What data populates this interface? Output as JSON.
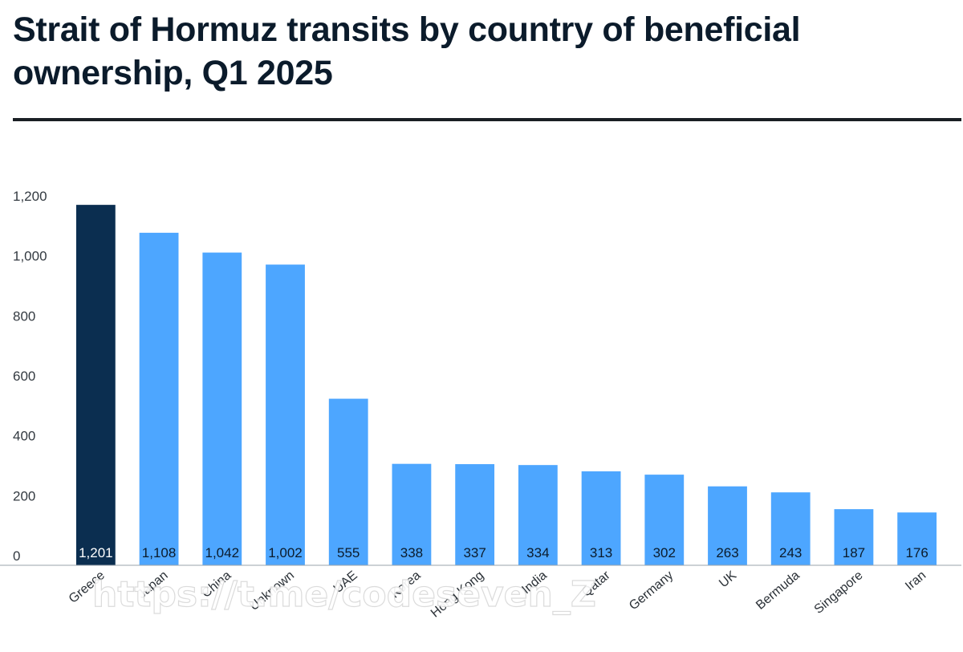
{
  "title": "Strait of Hormuz transits by country of beneficial ownership, Q1 2025",
  "watermark": "https://t.me/codeseven_Z",
  "colors": {
    "highlight_bar": "#0b2e50",
    "bar": "#4da6ff",
    "highlight_label": "#ffffff",
    "label": "#0b1b2b"
  },
  "chart_data": {
    "type": "bar",
    "title": "Strait of Hormuz transits by country of beneficial ownership, Q1 2025",
    "categories": [
      "Greece",
      "Japan",
      "China",
      "Unknown",
      "UAE",
      "Korea",
      "Hong Kong",
      "India",
      "Qatar",
      "Germany",
      "UK",
      "Bermuda",
      "Singapore",
      "Iran"
    ],
    "values": [
      1201,
      1108,
      1042,
      1002,
      555,
      338,
      337,
      334,
      313,
      302,
      263,
      243,
      187,
      176
    ],
    "value_labels": [
      "1,201",
      "1,108",
      "1,042",
      "1,002",
      "555",
      "338",
      "337",
      "334",
      "313",
      "302",
      "263",
      "243",
      "187",
      "176"
    ],
    "highlight_index": 0,
    "yticks": [
      0,
      200,
      400,
      600,
      800,
      1000,
      1200
    ],
    "ytick_labels": [
      "0",
      "200",
      "400",
      "600",
      "800",
      "1,000",
      "1,200"
    ],
    "ylim": [
      0,
      1200
    ],
    "xlabel": "",
    "ylabel": "",
    "grid": false,
    "legend": "none",
    "value_label_position": "inside-bottom"
  }
}
